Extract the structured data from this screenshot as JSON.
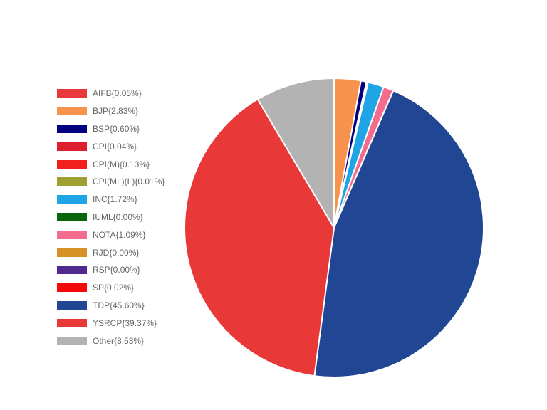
{
  "chart_data": {
    "type": "pie",
    "legend_position": "left",
    "slices": [
      {
        "label": "AIFB{0.05%}",
        "value": 0.05,
        "color": "#e8383b"
      },
      {
        "label": "BJP{2.83%}",
        "value": 2.83,
        "color": "#f7934c"
      },
      {
        "label": "BSP{0.60%}",
        "value": 0.6,
        "color": "#000080"
      },
      {
        "label": "CPI{0.04%}",
        "value": 0.04,
        "color": "#de1e2e"
      },
      {
        "label": "CPI(M){0.13%}",
        "value": 0.13,
        "color": "#f2201d"
      },
      {
        "label": "CPI(ML)(L){0.01%}",
        "value": 0.01,
        "color": "#9ea132"
      },
      {
        "label": "INC{1.72%}",
        "value": 1.72,
        "color": "#1fa4e6"
      },
      {
        "label": "IUML{0.00%}",
        "value": 0.0,
        "color": "#07660b"
      },
      {
        "label": "NOTA{1.09%}",
        "value": 1.09,
        "color": "#f36c8e"
      },
      {
        "label": "RJD{0.00%}",
        "value": 0.0,
        "color": "#d89125"
      },
      {
        "label": "RSP{0.00%}",
        "value": 0.0,
        "color": "#4e2a8c"
      },
      {
        "label": "SP{0.02%}",
        "value": 0.02,
        "color": "#f4090b"
      },
      {
        "label": "TDP{45.60%}",
        "value": 45.6,
        "color": "#204694"
      },
      {
        "label": "YSRCP{39.37%}",
        "value": 39.37,
        "color": "#e93838"
      },
      {
        "label": "Other{8.53%}",
        "value": 8.53,
        "color": "#b3b3b3"
      }
    ]
  }
}
